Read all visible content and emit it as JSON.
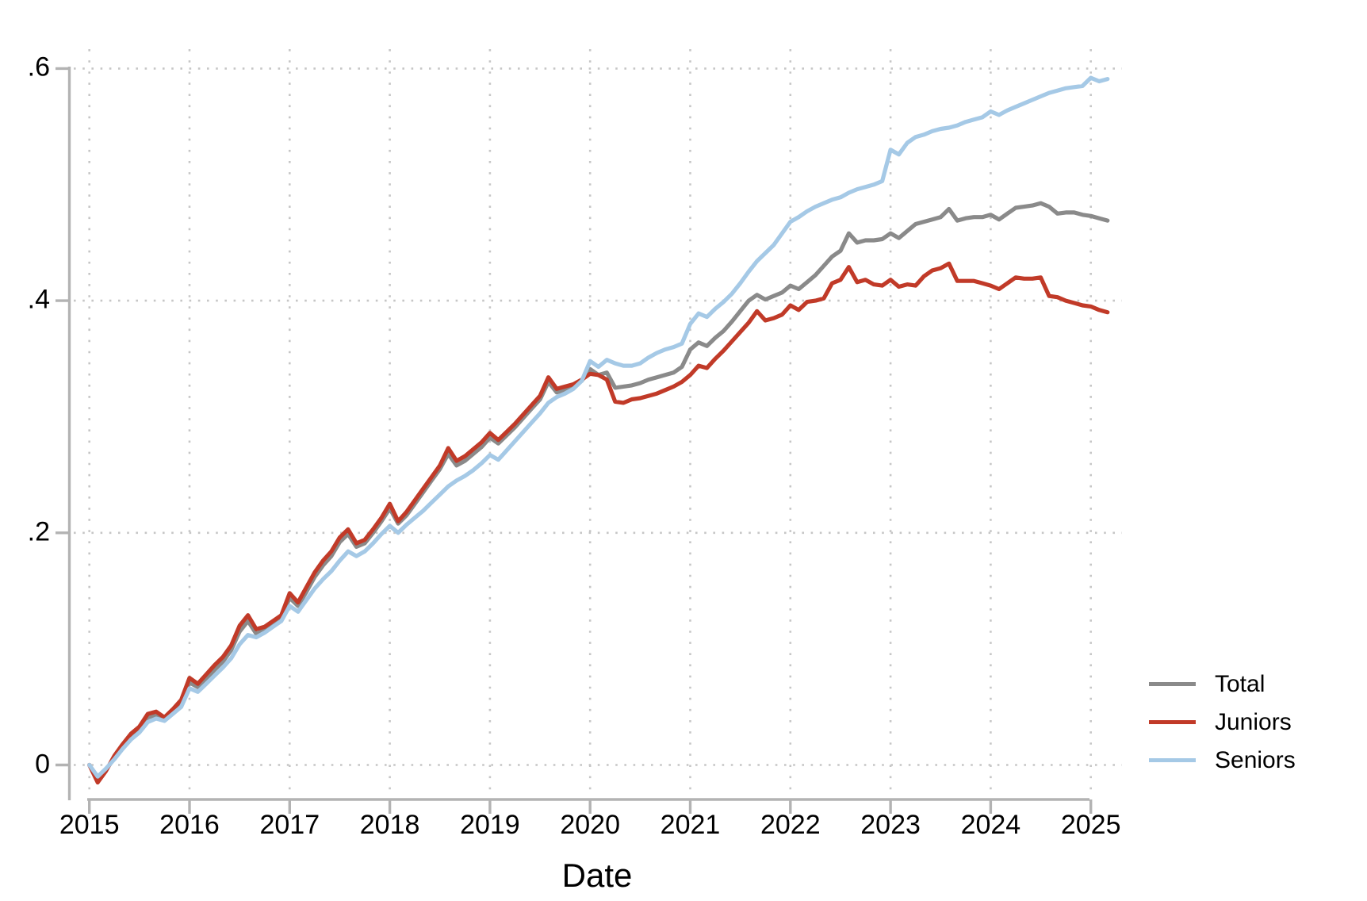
{
  "chart_data": {
    "type": "line",
    "title": "",
    "x_label": "Date",
    "y_label": "",
    "x_frequency": "monthly",
    "x_start": "2015-01",
    "x_end": "2025-03",
    "x_tick_labels": [
      "2015",
      "2016",
      "2017",
      "2018",
      "2019",
      "2020",
      "2021",
      "2022",
      "2023",
      "2024",
      "2025"
    ],
    "y_ticks": [
      {
        "label": "0",
        "value": 0
      },
      {
        "label": ".2",
        "value": 0.2
      },
      {
        "label": ".4",
        "value": 0.4
      },
      {
        "label": ".6",
        "value": 0.6
      }
    ],
    "ylim": [
      -0.03,
      0.62
    ],
    "grid": "dotted gridlines at each year and each 0.2 y-step",
    "legend_position": "outside-right-bottom",
    "months": [
      "2015-01",
      "2015-02",
      "2015-03",
      "2015-04",
      "2015-05",
      "2015-06",
      "2015-07",
      "2015-08",
      "2015-09",
      "2015-10",
      "2015-11",
      "2015-12",
      "2016-01",
      "2016-02",
      "2016-03",
      "2016-04",
      "2016-05",
      "2016-06",
      "2016-07",
      "2016-08",
      "2016-09",
      "2016-10",
      "2016-11",
      "2016-12",
      "2017-01",
      "2017-02",
      "2017-03",
      "2017-04",
      "2017-05",
      "2017-06",
      "2017-07",
      "2017-08",
      "2017-09",
      "2017-10",
      "2017-11",
      "2017-12",
      "2018-01",
      "2018-02",
      "2018-03",
      "2018-04",
      "2018-05",
      "2018-06",
      "2018-07",
      "2018-08",
      "2018-09",
      "2018-10",
      "2018-11",
      "2018-12",
      "2019-01",
      "2019-02",
      "2019-03",
      "2019-04",
      "2019-05",
      "2019-06",
      "2019-07",
      "2019-08",
      "2019-09",
      "2019-10",
      "2019-11",
      "2019-12",
      "2020-01",
      "2020-02",
      "2020-03",
      "2020-04",
      "2020-05",
      "2020-06",
      "2020-07",
      "2020-08",
      "2020-09",
      "2020-10",
      "2020-11",
      "2020-12",
      "2021-01",
      "2021-02",
      "2021-03",
      "2021-04",
      "2021-05",
      "2021-06",
      "2021-07",
      "2021-08",
      "2021-09",
      "2021-10",
      "2021-11",
      "2021-12",
      "2022-01",
      "2022-02",
      "2022-03",
      "2022-04",
      "2022-05",
      "2022-06",
      "2022-07",
      "2022-08",
      "2022-09",
      "2022-10",
      "2022-11",
      "2022-12",
      "2023-01",
      "2023-02",
      "2023-03",
      "2023-04",
      "2023-05",
      "2023-06",
      "2023-07",
      "2023-08",
      "2023-09",
      "2023-10",
      "2023-11",
      "2023-12",
      "2024-01",
      "2024-02",
      "2024-03",
      "2024-04",
      "2024-05",
      "2024-06",
      "2024-07",
      "2024-08",
      "2024-09",
      "2024-10",
      "2024-11",
      "2024-12",
      "2025-01",
      "2025-02",
      "2025-03"
    ],
    "series": [
      {
        "name": "Total",
        "color": "#8a8a8a",
        "values": [
          0.0,
          -0.012,
          -0.004,
          0.006,
          0.016,
          0.024,
          0.03,
          0.041,
          0.043,
          0.039,
          0.046,
          0.053,
          0.071,
          0.067,
          0.074,
          0.082,
          0.089,
          0.099,
          0.115,
          0.124,
          0.113,
          0.116,
          0.121,
          0.127,
          0.144,
          0.137,
          0.149,
          0.162,
          0.172,
          0.18,
          0.192,
          0.199,
          0.188,
          0.191,
          0.2,
          0.21,
          0.221,
          0.208,
          0.215,
          0.225,
          0.235,
          0.245,
          0.255,
          0.268,
          0.258,
          0.262,
          0.268,
          0.274,
          0.282,
          0.277,
          0.284,
          0.291,
          0.299,
          0.307,
          0.315,
          0.33,
          0.321,
          0.323,
          0.326,
          0.331,
          0.341,
          0.336,
          0.338,
          0.325,
          0.326,
          0.327,
          0.329,
          0.332,
          0.334,
          0.336,
          0.338,
          0.343,
          0.358,
          0.364,
          0.361,
          0.368,
          0.374,
          0.382,
          0.391,
          0.4,
          0.405,
          0.401,
          0.404,
          0.407,
          0.413,
          0.41,
          0.416,
          0.422,
          0.43,
          0.438,
          0.443,
          0.458,
          0.45,
          0.452,
          0.452,
          0.453,
          0.458,
          0.454,
          0.46,
          0.466,
          0.468,
          0.47,
          0.472,
          0.479,
          0.469,
          0.471,
          0.472,
          0.472,
          0.474,
          0.47,
          0.475,
          0.48,
          0.481,
          0.482,
          0.484,
          0.481,
          0.475,
          0.476,
          0.476,
          0.474,
          0.473,
          0.471,
          0.469
        ]
      },
      {
        "name": "Juniors",
        "color": "#c13a28",
        "values": [
          0.0,
          -0.015,
          -0.005,
          0.008,
          0.018,
          0.027,
          0.033,
          0.044,
          0.046,
          0.041,
          0.048,
          0.056,
          0.075,
          0.07,
          0.078,
          0.086,
          0.093,
          0.103,
          0.12,
          0.129,
          0.117,
          0.119,
          0.124,
          0.129,
          0.148,
          0.14,
          0.153,
          0.166,
          0.176,
          0.184,
          0.196,
          0.203,
          0.191,
          0.194,
          0.203,
          0.213,
          0.225,
          0.21,
          0.218,
          0.228,
          0.238,
          0.248,
          0.258,
          0.273,
          0.262,
          0.266,
          0.272,
          0.278,
          0.286,
          0.28,
          0.287,
          0.294,
          0.302,
          0.31,
          0.318,
          0.334,
          0.324,
          0.326,
          0.328,
          0.332,
          0.337,
          0.336,
          0.332,
          0.313,
          0.312,
          0.315,
          0.316,
          0.318,
          0.32,
          0.323,
          0.326,
          0.33,
          0.336,
          0.344,
          0.342,
          0.35,
          0.357,
          0.365,
          0.373,
          0.381,
          0.391,
          0.383,
          0.385,
          0.388,
          0.396,
          0.392,
          0.399,
          0.4,
          0.402,
          0.415,
          0.418,
          0.429,
          0.416,
          0.418,
          0.414,
          0.413,
          0.418,
          0.412,
          0.414,
          0.413,
          0.421,
          0.426,
          0.428,
          0.432,
          0.417,
          0.417,
          0.417,
          0.415,
          0.413,
          0.41,
          0.415,
          0.42,
          0.419,
          0.419,
          0.42,
          0.404,
          0.403,
          0.4,
          0.398,
          0.396,
          0.395,
          0.392,
          0.39
        ]
      },
      {
        "name": "Seniors",
        "color": "#a5c9e6",
        "values": [
          0.0,
          -0.01,
          -0.003,
          0.005,
          0.014,
          0.022,
          0.028,
          0.037,
          0.04,
          0.038,
          0.044,
          0.05,
          0.066,
          0.063,
          0.07,
          0.077,
          0.084,
          0.092,
          0.104,
          0.112,
          0.11,
          0.114,
          0.119,
          0.124,
          0.137,
          0.132,
          0.142,
          0.152,
          0.16,
          0.167,
          0.176,
          0.184,
          0.18,
          0.184,
          0.191,
          0.199,
          0.206,
          0.2,
          0.207,
          0.213,
          0.219,
          0.226,
          0.233,
          0.24,
          0.245,
          0.249,
          0.254,
          0.26,
          0.267,
          0.263,
          0.271,
          0.279,
          0.287,
          0.295,
          0.303,
          0.312,
          0.317,
          0.32,
          0.324,
          0.331,
          0.348,
          0.343,
          0.349,
          0.346,
          0.344,
          0.344,
          0.346,
          0.351,
          0.355,
          0.358,
          0.36,
          0.363,
          0.38,
          0.389,
          0.386,
          0.393,
          0.399,
          0.406,
          0.415,
          0.425,
          0.434,
          0.441,
          0.448,
          0.458,
          0.468,
          0.472,
          0.477,
          0.481,
          0.484,
          0.487,
          0.489,
          0.493,
          0.496,
          0.498,
          0.5,
          0.503,
          0.53,
          0.526,
          0.536,
          0.541,
          0.543,
          0.546,
          0.548,
          0.549,
          0.551,
          0.554,
          0.556,
          0.558,
          0.563,
          0.56,
          0.564,
          0.567,
          0.57,
          0.573,
          0.576,
          0.579,
          0.581,
          0.583,
          0.584,
          0.585,
          0.592,
          0.589,
          0.591
        ]
      }
    ],
    "colors": {
      "axis": "#b3b3b3",
      "grid": "#c6c6c6",
      "text": "#000000",
      "total_line": "#8a8a8a",
      "juniors_line": "#c13a28",
      "seniors_line": "#a5c9e6"
    }
  }
}
